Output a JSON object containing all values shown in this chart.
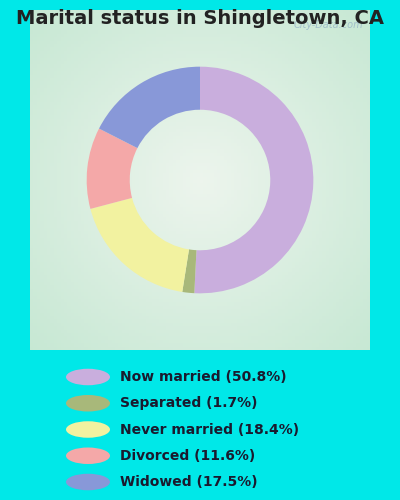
{
  "title": "Marital status in Shingletown, CA",
  "slices": [
    {
      "label": "Now married (50.8%)",
      "value": 50.8,
      "color": "#c9aedd"
    },
    {
      "label": "Separated (1.7%)",
      "value": 1.7,
      "color": "#a8b87a"
    },
    {
      "label": "Never married (18.4%)",
      "value": 18.4,
      "color": "#f2f2a0"
    },
    {
      "label": "Divorced (11.6%)",
      "value": 11.6,
      "color": "#f4a8a8"
    },
    {
      "label": "Widowed (17.5%)",
      "value": 17.5,
      "color": "#8898d8"
    }
  ],
  "bg_outer": "#00e8e8",
  "chart_bg_edge": "#c8e8d4",
  "chart_bg_center": "#e8f4ee",
  "title_fontsize": 14,
  "watermark": "City-Data.com",
  "donut_width": 0.38,
  "startangle": 90,
  "legend_fontsize": 10
}
